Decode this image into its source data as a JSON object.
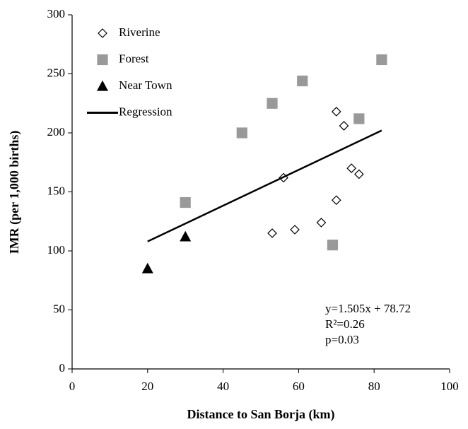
{
  "chart_data": {
    "type": "scatter",
    "xlabel": "Distance to San Borja (km)",
    "ylabel": "IMR (per 1,000 births)",
    "xlim": [
      0,
      100
    ],
    "xticks": [
      0,
      20,
      40,
      60,
      80,
      100
    ],
    "ylim": [
      0,
      300
    ],
    "yticks": [
      0,
      50,
      100,
      150,
      200,
      250,
      300
    ],
    "legend": "upper-left",
    "series": [
      {
        "name": "Riverine",
        "marker": "diamond",
        "color": "#000000",
        "fill": "#ffffff",
        "x": [
          53,
          59,
          56,
          70,
          70,
          72,
          74,
          76,
          66
        ],
        "values": [
          115,
          118,
          162,
          143,
          218,
          206,
          170,
          165,
          124
        ]
      },
      {
        "name": "Forest",
        "marker": "square",
        "color": "#999999",
        "fill": "#999999",
        "x": [
          30,
          45,
          53,
          61,
          69,
          76,
          82
        ],
        "values": [
          141,
          200,
          225,
          244,
          105,
          212,
          262
        ]
      },
      {
        "name": "Near Town",
        "marker": "triangle",
        "color": "#000000",
        "fill": "#000000",
        "x": [
          20,
          30
        ],
        "values": [
          85,
          112
        ]
      },
      {
        "name": "Regression",
        "marker": "line",
        "color": "#000000",
        "x": [
          20,
          82
        ],
        "values": [
          108,
          202
        ]
      }
    ],
    "annotations": [
      "y=1.505x + 78.72",
      "R²=0.26",
      "p=0.03"
    ]
  }
}
